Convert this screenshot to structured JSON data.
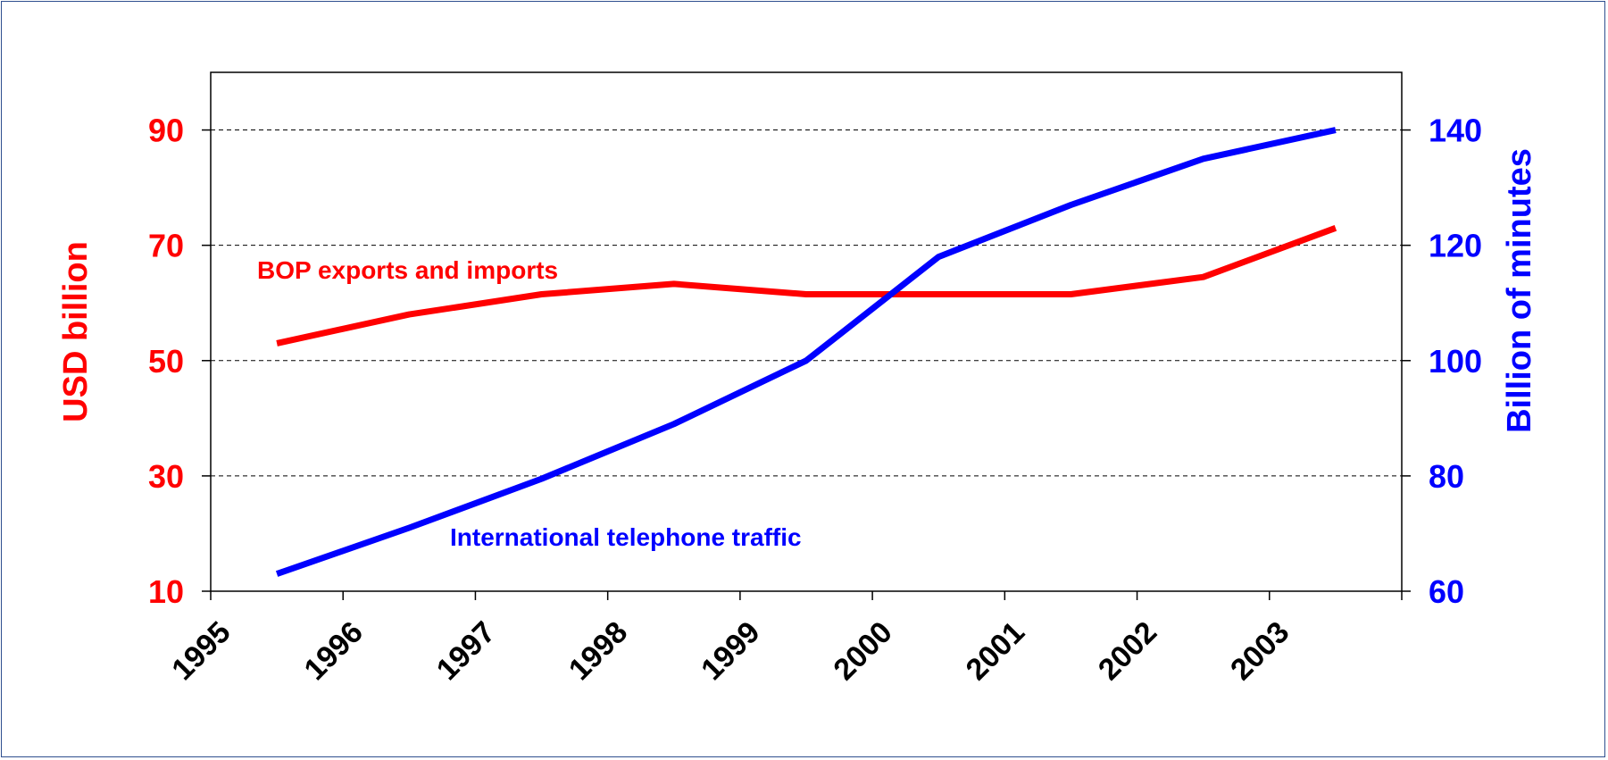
{
  "chart_data": {
    "type": "line",
    "categories": [
      "1995",
      "1996",
      "1997",
      "1998",
      "1999",
      "2000",
      "2001",
      "2002",
      "2003"
    ],
    "title": "",
    "y_left": {
      "label": "USD billion",
      "ticks": [
        10,
        30,
        50,
        70,
        90
      ],
      "range": [
        10,
        100
      ],
      "color": "#ff0000"
    },
    "y_right": {
      "label": "Billion of minutes",
      "ticks": [
        60,
        80,
        100,
        120,
        140
      ],
      "range": [
        60,
        150
      ],
      "color": "#0000ff"
    },
    "grid": "horizontal-dashed",
    "series": [
      {
        "name": "BOP exports and imports",
        "axis": "left",
        "color": "#ff0000",
        "values": [
          53,
          58,
          61.5,
          63.3,
          61.5,
          61.5,
          61.5,
          64.5,
          73
        ]
      },
      {
        "name": "International telephone traffic",
        "axis": "right",
        "color": "#0000ff",
        "values": [
          63,
          71,
          79.5,
          89,
          100,
          118,
          127,
          135,
          140
        ]
      }
    ]
  }
}
